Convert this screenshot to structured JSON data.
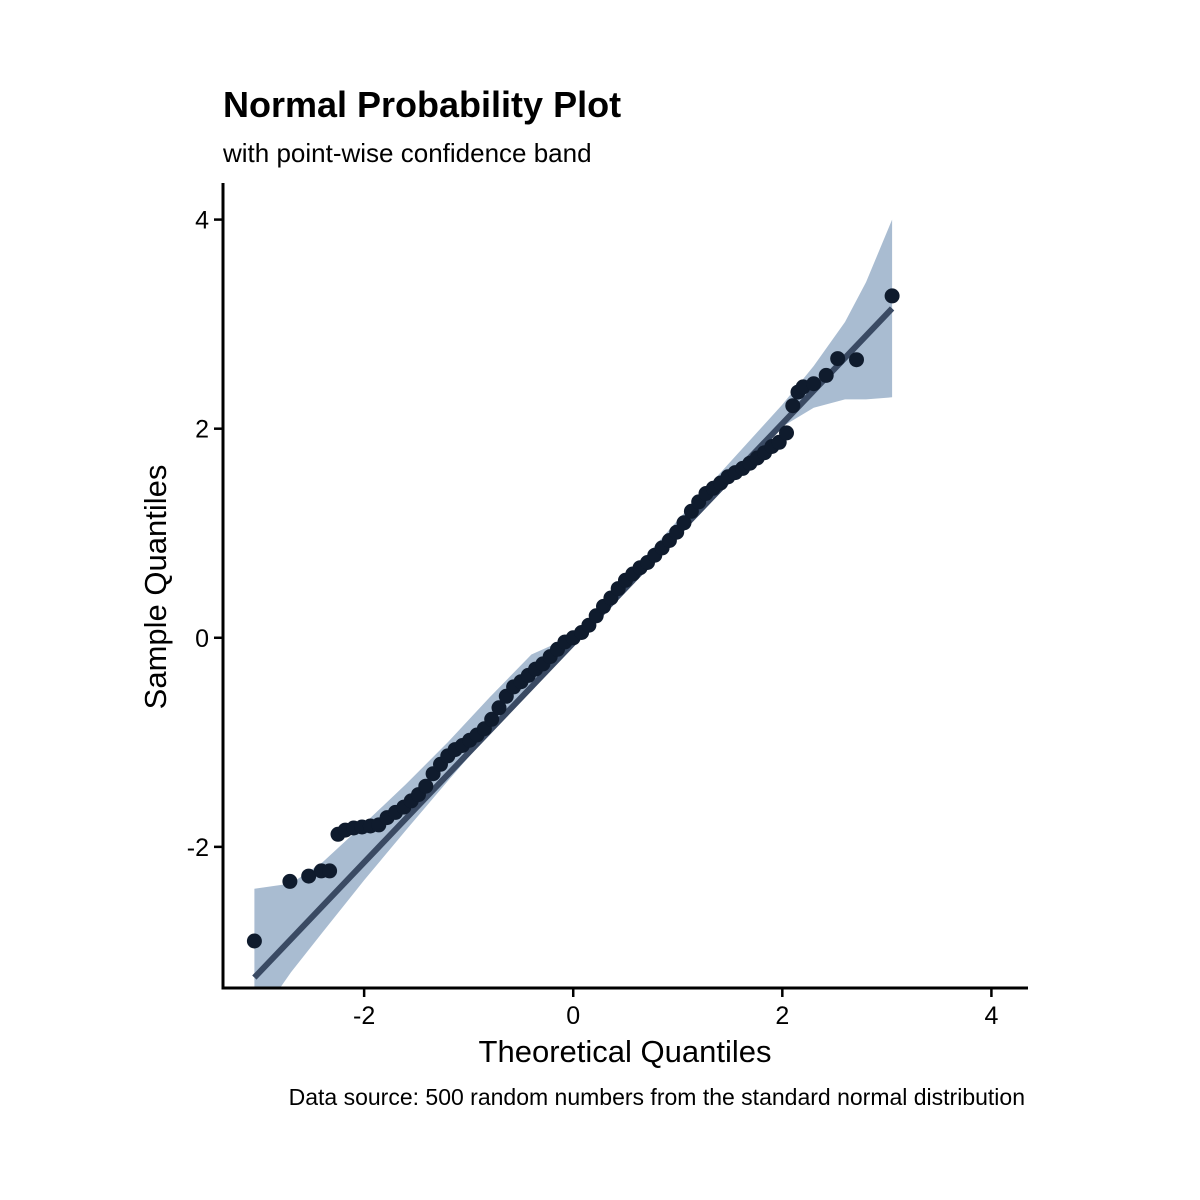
{
  "chart_data": {
    "type": "scatter",
    "title": "Normal Probability Plot",
    "subtitle": "with point-wise confidence band",
    "xlabel": "Theoretical Quantiles",
    "ylabel": "Sample Quantiles",
    "caption": "Data source: 500 random numbers from the standard normal distribution",
    "xlim": [
      -3.35,
      4.35
    ],
    "ylim": [
      -3.35,
      4.35
    ],
    "x_ticks": [
      -2,
      0,
      2,
      4
    ],
    "x_tick_labels": [
      "-2",
      "0",
      "2",
      "4"
    ],
    "y_ticks": [
      -2,
      0,
      2,
      4
    ],
    "y_tick_labels": [
      "-2",
      "0",
      "2",
      "4"
    ],
    "grid": false,
    "legend": "none",
    "colors": {
      "points": "#0f1b2d",
      "line": "#3a4a63",
      "band": "#a9bcd1",
      "axis": "#000000"
    },
    "reference_line": {
      "x": [
        -3.05,
        3.05
      ],
      "y": [
        -3.25,
        3.15
      ]
    },
    "confidence_band": {
      "x": [
        -3.05,
        -2.7,
        -2.4,
        -2.0,
        -1.6,
        -1.2,
        -0.8,
        -0.4,
        0.0,
        0.4,
        0.8,
        1.2,
        1.6,
        2.0,
        2.3,
        2.6,
        2.8,
        3.05
      ],
      "lower": [
        -3.7,
        -3.2,
        -2.82,
        -2.32,
        -1.84,
        -1.37,
        -0.91,
        -0.46,
        -0.04,
        0.38,
        0.8,
        1.22,
        1.63,
        2.02,
        2.2,
        2.28,
        2.28,
        2.3
      ],
      "upper": [
        -2.4,
        -2.35,
        -2.15,
        -1.78,
        -1.4,
        -1.0,
        -0.57,
        -0.16,
        0.02,
        0.46,
        0.9,
        1.35,
        1.79,
        2.23,
        2.6,
        3.02,
        3.4,
        4.0
      ]
    },
    "points": {
      "x": [
        -3.05,
        -2.71,
        -2.53,
        -2.41,
        -2.33,
        -2.25,
        -2.18,
        -2.1,
        -2.02,
        -1.94,
        -1.86,
        -1.78,
        -1.7,
        -1.62,
        -1.55,
        -1.48,
        -1.41,
        -1.34,
        -1.27,
        -1.2,
        -1.13,
        -1.06,
        -0.99,
        -0.92,
        -0.85,
        -0.78,
        -0.71,
        -0.64,
        -0.57,
        -0.5,
        -0.43,
        -0.36,
        -0.29,
        -0.22,
        -0.15,
        -0.08,
        0.0,
        0.08,
        0.15,
        0.22,
        0.29,
        0.36,
        0.43,
        0.5,
        0.57,
        0.64,
        0.71,
        0.78,
        0.85,
        0.92,
        0.99,
        1.06,
        1.13,
        1.2,
        1.27,
        1.34,
        1.41,
        1.48,
        1.55,
        1.62,
        1.69,
        1.76,
        1.83,
        1.9,
        1.97,
        2.04,
        2.1,
        2.15,
        2.2,
        2.3,
        2.42,
        2.53,
        2.71,
        3.05
      ],
      "y": [
        -2.9,
        -2.33,
        -2.28,
        -2.23,
        -2.23,
        -1.88,
        -1.84,
        -1.82,
        -1.81,
        -1.8,
        -1.79,
        -1.72,
        -1.67,
        -1.62,
        -1.56,
        -1.5,
        -1.42,
        -1.3,
        -1.21,
        -1.13,
        -1.07,
        -1.03,
        -0.98,
        -0.93,
        -0.87,
        -0.78,
        -0.67,
        -0.56,
        -0.47,
        -0.42,
        -0.36,
        -0.3,
        -0.25,
        -0.18,
        -0.11,
        -0.04,
        0.0,
        0.05,
        0.12,
        0.21,
        0.3,
        0.38,
        0.47,
        0.55,
        0.61,
        0.67,
        0.72,
        0.79,
        0.86,
        0.93,
        1.01,
        1.1,
        1.21,
        1.3,
        1.38,
        1.43,
        1.48,
        1.54,
        1.58,
        1.62,
        1.67,
        1.72,
        1.77,
        1.83,
        1.87,
        1.96,
        2.22,
        2.35,
        2.4,
        2.43,
        2.51,
        2.67,
        2.66,
        3.27
      ]
    }
  }
}
